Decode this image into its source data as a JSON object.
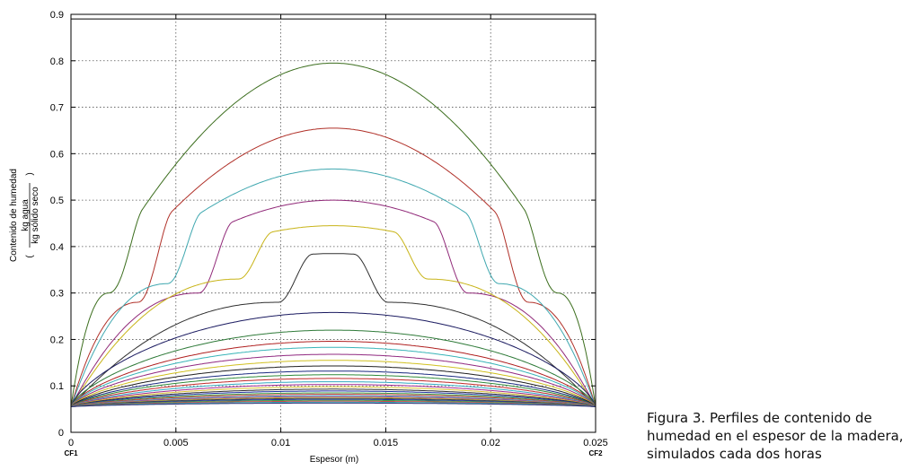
{
  "caption": {
    "line1": "Figura 3. Perfiles de contenido de",
    "line2": "humedad en el espesor de la madera,",
    "line3": "simulados cada dos horas"
  },
  "chart_data": {
    "type": "line",
    "title": "",
    "xlabel": "Espesor (m)",
    "ylabel": "Contenido de humedad",
    "ylabel_fraction_numerator": "kg agua",
    "ylabel_fraction_denominator": "kg sólido seco",
    "xlim": [
      0,
      0.025
    ],
    "ylim": [
      0,
      0.9
    ],
    "x_ticks": [
      "0",
      "0.005",
      "0.01",
      "0.015",
      "0.02",
      "0.025"
    ],
    "y_ticks": [
      "0",
      "0.1",
      "0.2",
      "0.3",
      "0.4",
      "0.5",
      "0.6",
      "0.7",
      "0.8",
      "0.9"
    ],
    "x_annotations": [
      {
        "x": 0,
        "text": "CF1"
      },
      {
        "x": 0.025,
        "text": "CF2"
      }
    ],
    "grid": true,
    "boundary_value": 0.055,
    "top_line_value": 0.89,
    "series": [
      {
        "color": "#3c6e1e",
        "peak": 0.795,
        "shoulder": 0.3,
        "shoulder_x": 0.0018
      },
      {
        "color": "#b03028",
        "peak": 0.655,
        "shoulder": 0.28,
        "shoulder_x": 0.0032
      },
      {
        "color": "#40a8b0",
        "peak": 0.567,
        "shoulder": 0.32,
        "shoulder_x": 0.0046
      },
      {
        "color": "#902878",
        "peak": 0.5,
        "shoulder": 0.3,
        "shoulder_x": 0.0061
      },
      {
        "color": "#c8b418",
        "peak": 0.445,
        "shoulder": 0.33,
        "shoulder_x": 0.008
      },
      {
        "color": "#303030",
        "peak": 0.385,
        "shoulder": 0.28,
        "shoulder_x": 0.0099
      },
      {
        "color": "#1a1a60",
        "peak": 0.258
      },
      {
        "color": "#2e7a38",
        "peak": 0.22
      },
      {
        "color": "#b02020",
        "peak": 0.196
      },
      {
        "color": "#38b4b8",
        "peak": 0.183
      },
      {
        "color": "#902880",
        "peak": 0.168
      },
      {
        "color": "#d0c020",
        "peak": 0.155
      },
      {
        "color": "#202020",
        "peak": 0.143
      },
      {
        "color": "#1a2a80",
        "peak": 0.132
      },
      {
        "color": "#2e8a3a",
        "peak": 0.124
      },
      {
        "color": "#c02828",
        "peak": 0.116
      },
      {
        "color": "#30a8c0",
        "peak": 0.109
      },
      {
        "color": "#a02890",
        "peak": 0.103
      },
      {
        "color": "#d8c030",
        "peak": 0.098
      },
      {
        "color": "#303030",
        "peak": 0.093
      },
      {
        "color": "#2030a0",
        "peak": 0.089
      },
      {
        "color": "#3a9a40",
        "peak": 0.085
      },
      {
        "color": "#c83838",
        "peak": 0.082
      },
      {
        "color": "#40b8c8",
        "peak": 0.079
      },
      {
        "color": "#a83098",
        "peak": 0.077
      },
      {
        "color": "#c8c040",
        "peak": 0.075
      },
      {
        "color": "#404040",
        "peak": 0.073
      },
      {
        "color": "#2838a8",
        "peak": 0.071
      },
      {
        "color": "#40a048",
        "peak": 0.069
      },
      {
        "color": "#d04040",
        "peak": 0.067
      },
      {
        "color": "#40b8c0",
        "peak": 0.065
      },
      {
        "color": "#282870",
        "peak": 0.063
      }
    ]
  }
}
